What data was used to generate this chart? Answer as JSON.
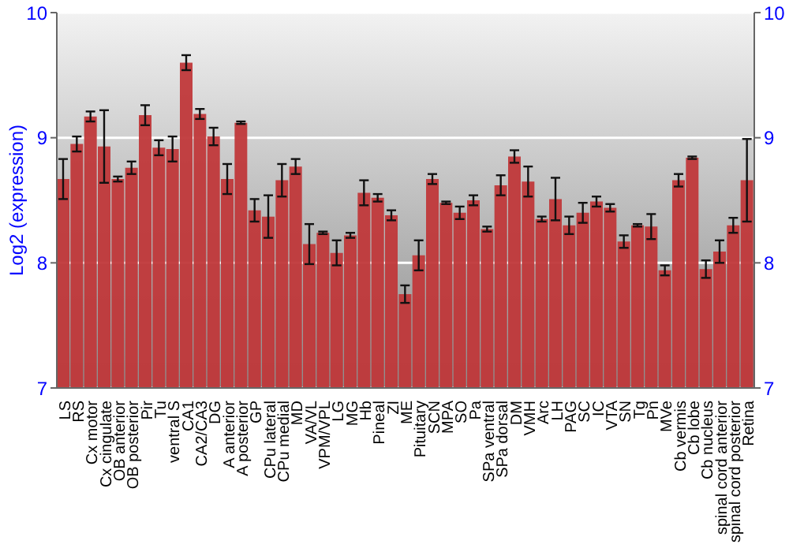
{
  "chart_data": {
    "type": "bar",
    "ylabel": "Log2 (expression)",
    "categories": [
      "LS",
      "RS",
      "Cx motor",
      "Cx cingulate",
      "OB anterior",
      "OB posterior",
      "Pir",
      "Tu",
      "ventral S",
      "CA1",
      "CA2/CA3",
      "DG",
      "A anterior",
      "A posterior",
      "GP",
      "CPu lateral",
      "CPu medial",
      "MD",
      "VA/VL",
      "VPM/VPL",
      "LG",
      "MG",
      "Hb",
      "Pineal",
      "ZI",
      "ME",
      "Pituitary",
      "SCN",
      "MPA",
      "SO",
      "Pa",
      "SPa ventral",
      "SPa dorsal",
      "DM",
      "VMH",
      "Arc",
      "LH",
      "PAG",
      "SC",
      "IC",
      "VTA",
      "SN",
      "Tg",
      "Pn",
      "MVe",
      "Cb vermis",
      "Cb lobe",
      "Cb nucleus",
      "spinal cord anterior",
      "spinal cord posterior",
      "Retina"
    ],
    "values": [
      8.67,
      8.95,
      9.17,
      8.93,
      8.67,
      8.76,
      9.18,
      8.92,
      8.91,
      9.6,
      9.19,
      9.01,
      8.67,
      9.12,
      8.42,
      8.37,
      8.66,
      8.77,
      8.15,
      8.24,
      8.08,
      8.22,
      8.56,
      8.52,
      8.38,
      7.75,
      8.06,
      8.67,
      8.48,
      8.4,
      8.5,
      8.27,
      8.62,
      8.85,
      8.65,
      8.35,
      8.51,
      8.3,
      8.4,
      8.49,
      8.44,
      8.17,
      8.3,
      8.29,
      7.94,
      8.66,
      8.84,
      7.95,
      8.09,
      8.3,
      8.66
    ],
    "errors": [
      0.16,
      0.06,
      0.04,
      0.29,
      0.02,
      0.05,
      0.08,
      0.06,
      0.1,
      0.06,
      0.04,
      0.07,
      0.12,
      0.01,
      0.09,
      0.17,
      0.13,
      0.06,
      0.16,
      0.01,
      0.1,
      0.02,
      0.1,
      0.03,
      0.04,
      0.07,
      0.12,
      0.04,
      0.01,
      0.05,
      0.04,
      0.02,
      0.08,
      0.05,
      0.12,
      0.02,
      0.17,
      0.07,
      0.08,
      0.04,
      0.03,
      0.05,
      0.01,
      0.1,
      0.04,
      0.05,
      0.01,
      0.07,
      0.09,
      0.06,
      0.33
    ],
    "color": "#c0383a",
    "ylim": [
      7,
      10
    ],
    "yticks": [
      7,
      8,
      9,
      10
    ],
    "y2lim": [
      7,
      10
    ],
    "y2ticks": [
      7,
      8,
      9,
      10
    ],
    "grid": "y",
    "legend": false
  }
}
